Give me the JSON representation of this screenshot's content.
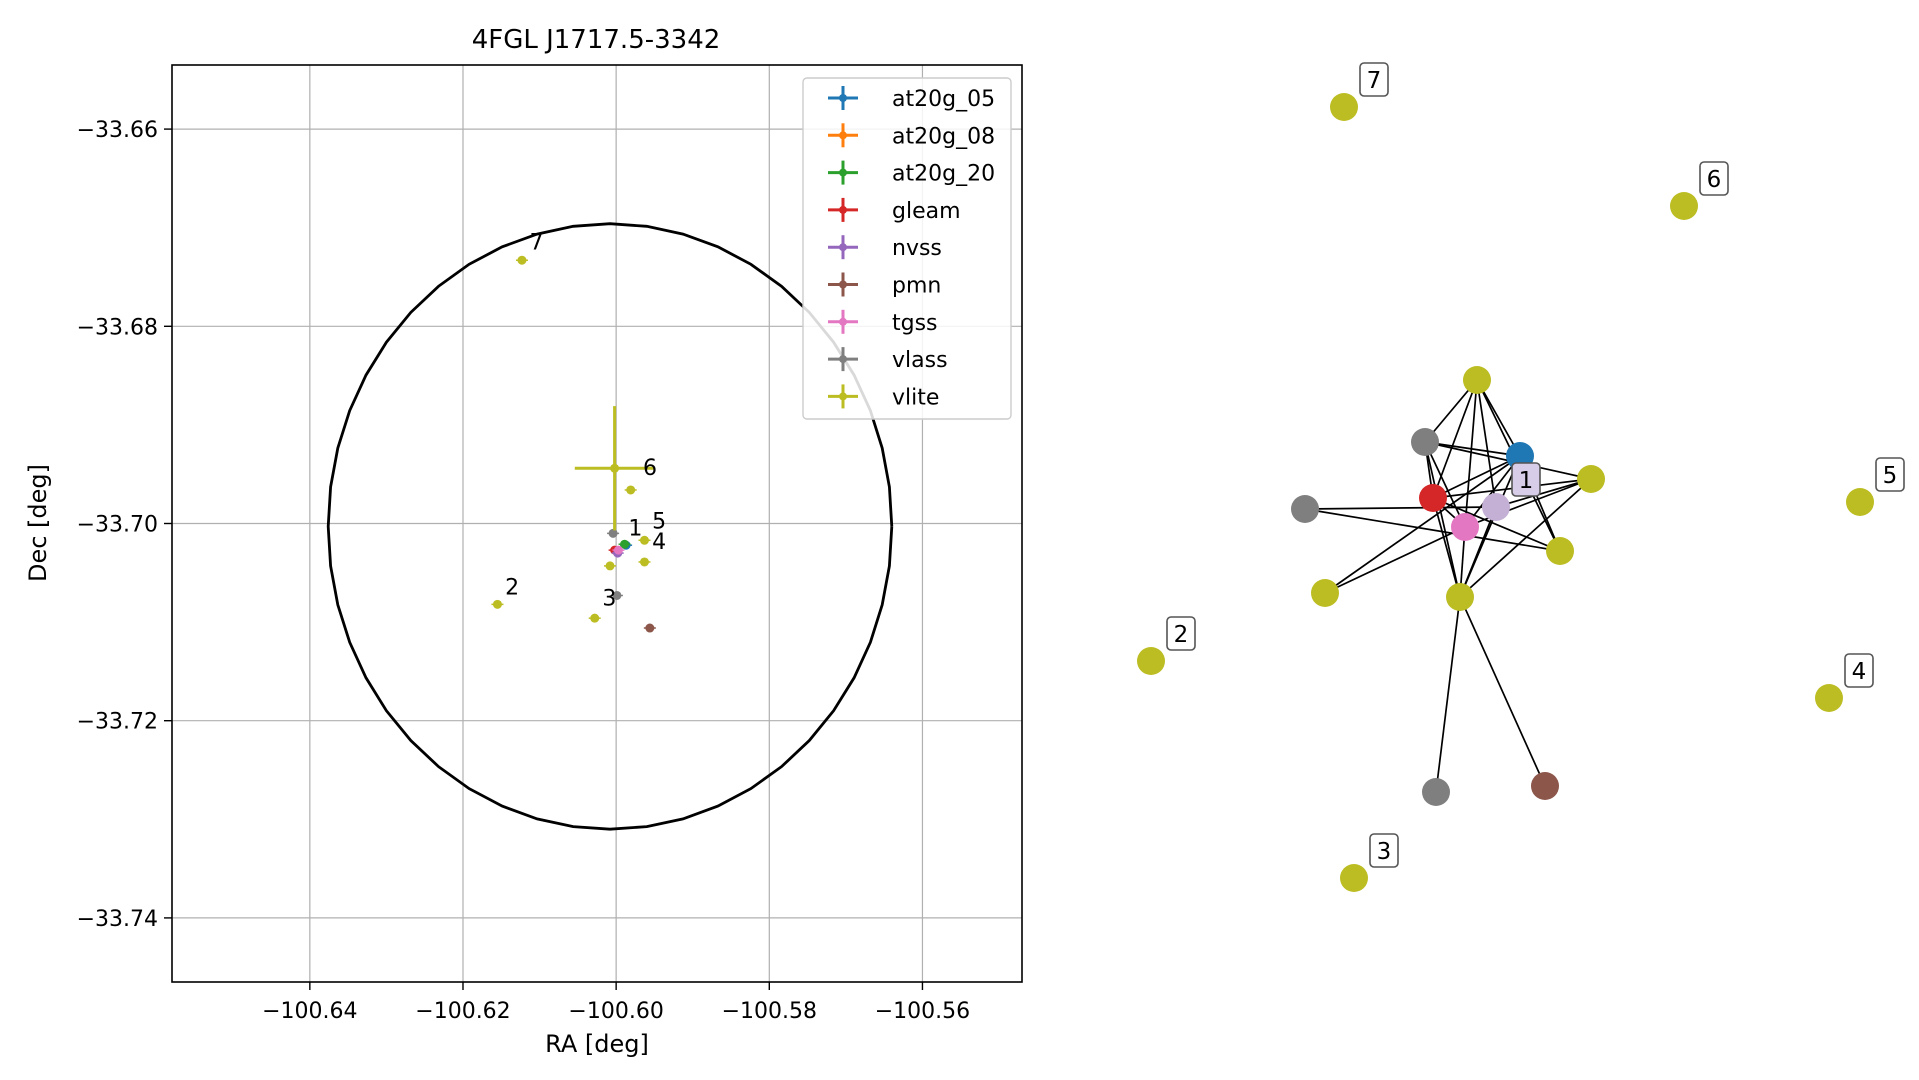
{
  "chart_data": [
    {
      "type": "scatter",
      "title": "4FGL J1717.5-3342",
      "xlabel": "RA [deg]",
      "ylabel": "Dec [deg]",
      "xlim": [
        -100.658,
        -100.547
      ],
      "ylim": [
        -33.7465,
        -33.6535
      ],
      "xticks": [
        -100.64,
        -100.62,
        -100.6,
        -100.58,
        -100.56
      ],
      "yticks": [
        -33.66,
        -33.68,
        -33.7,
        -33.72,
        -33.74
      ],
      "xtick_labels": [
        "−100.64",
        "−100.62",
        "−100.60",
        "−100.58",
        "−100.56"
      ],
      "ytick_labels": [
        "−33.66",
        "−33.68",
        "−33.70",
        "−33.72",
        "−33.74"
      ],
      "grid": true,
      "legend_position": "top-right",
      "ellipse": {
        "center_ra": -100.6008,
        "center_dec": -33.7003,
        "semi_axis_ra": 0.0368,
        "semi_axis_dec": 0.0307,
        "color": "#000000"
      },
      "series": [
        {
          "name": "at20g_05",
          "color": "#1f77b4",
          "points": [
            {
              "ra": -100.5987,
              "dec": -33.7022
            }
          ]
        },
        {
          "name": "at20g_08",
          "color": "#ff7f0e",
          "points": []
        },
        {
          "name": "at20g_20",
          "color": "#2ca02c",
          "points": [
            {
              "ra": -100.5989,
              "dec": -33.7021
            }
          ]
        },
        {
          "name": "gleam",
          "color": "#d62728",
          "points": [
            {
              "ra": -100.6002,
              "dec": -33.7027
            }
          ]
        },
        {
          "name": "nvss",
          "color": "#9467bd",
          "points": [
            {
              "ra": -100.5998,
              "dec": -33.703
            }
          ]
        },
        {
          "name": "pmn",
          "color": "#8c564b",
          "points": [
            {
              "ra": -100.5956,
              "dec": -33.7106
            }
          ]
        },
        {
          "name": "tgss",
          "color": "#e377c2",
          "points": [
            {
              "ra": -100.5997,
              "dec": -33.7027
            }
          ]
        },
        {
          "name": "vlass",
          "color": "#7f7f7f",
          "points": [
            {
              "ra": -100.6004,
              "dec": -33.701
            },
            {
              "ra": -100.5999,
              "dec": -33.7073
            }
          ]
        },
        {
          "name": "vlite",
          "color": "#bcbd22",
          "points": [
            {
              "ra": -100.6002,
              "dec": -33.6944,
              "xerr": 0.0052,
              "yerr": 0.0063
            },
            {
              "ra": -100.6123,
              "dec": -33.6733
            },
            {
              "ra": -100.5981,
              "dec": -33.6966
            },
            {
              "ra": -100.5963,
              "dec": -33.7017
            },
            {
              "ra": -100.5963,
              "dec": -33.7039
            },
            {
              "ra": -100.6008,
              "dec": -33.7043
            },
            {
              "ra": -100.6155,
              "dec": -33.7082
            },
            {
              "ra": -100.6028,
              "dec": -33.7096
            }
          ]
        }
      ],
      "annotations": [
        {
          "text": "1",
          "ra": -100.5984,
          "dec": -33.7012
        },
        {
          "text": "2",
          "ra": -100.6145,
          "dec": -33.7072
        },
        {
          "text": "3",
          "ra": -100.6018,
          "dec": -33.7083
        },
        {
          "text": "4",
          "ra": -100.5953,
          "dec": -33.7026
        },
        {
          "text": "5",
          "ra": -100.5953,
          "dec": -33.7005
        },
        {
          "text": "6",
          "ra": -100.5965,
          "dec": -33.6951
        },
        {
          "text": "7",
          "ra": -100.6113,
          "dec": -33.6722
        }
      ]
    },
    {
      "type": "network",
      "nodes": [
        {
          "id": "vlite-top",
          "color": "#bcbd22",
          "label": ""
        },
        {
          "id": "vlass-a",
          "color": "#7f7f7f",
          "label": ""
        },
        {
          "id": "at20g",
          "color": "#1f77b4",
          "label": ""
        },
        {
          "id": "vlite-right",
          "color": "#bcbd22",
          "label": ""
        },
        {
          "id": "vlass-left",
          "color": "#7f7f7f",
          "label": ""
        },
        {
          "id": "gleam",
          "color": "#d62728",
          "label": ""
        },
        {
          "id": "nvss",
          "color": "#c5b0d5",
          "label": "1"
        },
        {
          "id": "tgss",
          "color": "#e377c2",
          "label": ""
        },
        {
          "id": "vlite-mid-right",
          "color": "#bcbd22",
          "label": ""
        },
        {
          "id": "vlite-left",
          "color": "#bcbd22",
          "label": ""
        },
        {
          "id": "vlite-center",
          "color": "#bcbd22",
          "label": ""
        },
        {
          "id": "vlass-bottom",
          "color": "#7f7f7f",
          "label": ""
        },
        {
          "id": "pmn",
          "color": "#8c564b",
          "label": ""
        },
        {
          "id": "iso-7",
          "color": "#bcbd22",
          "label": "7"
        },
        {
          "id": "iso-6",
          "color": "#bcbd22",
          "label": "6"
        },
        {
          "id": "iso-5",
          "color": "#bcbd22",
          "label": "5"
        },
        {
          "id": "iso-4",
          "color": "#bcbd22",
          "label": "4"
        },
        {
          "id": "iso-2",
          "color": "#bcbd22",
          "label": "2"
        },
        {
          "id": "iso-3",
          "color": "#bcbd22",
          "label": "3"
        }
      ],
      "edges": [
        [
          "vlite-top",
          "vlass-a"
        ],
        [
          "vlite-top",
          "at20g"
        ],
        [
          "vlite-top",
          "gleam"
        ],
        [
          "vlite-top",
          "tgss"
        ],
        [
          "vlite-top",
          "nvss"
        ],
        [
          "vlite-top",
          "vlite-mid-right"
        ],
        [
          "vlass-a",
          "at20g"
        ],
        [
          "vlass-a",
          "vlite-right"
        ],
        [
          "vlass-a",
          "gleam"
        ],
        [
          "vlass-a",
          "tgss"
        ],
        [
          "vlass-a",
          "vlite-center"
        ],
        [
          "at20g",
          "gleam"
        ],
        [
          "at20g",
          "tgss"
        ],
        [
          "at20g",
          "vlite-mid-right"
        ],
        [
          "at20g",
          "vlite-center"
        ],
        [
          "at20g",
          "vlite-left"
        ],
        [
          "vlite-right",
          "gleam"
        ],
        [
          "vlite-right",
          "tgss"
        ],
        [
          "vlite-right",
          "nvss"
        ],
        [
          "vlite-right",
          "vlite-center"
        ],
        [
          "vlass-left",
          "nvss"
        ],
        [
          "vlass-left",
          "vlite-mid-right"
        ],
        [
          "gleam",
          "vlite-center"
        ],
        [
          "gleam",
          "vlite-mid-right"
        ],
        [
          "gleam",
          "tgss"
        ],
        [
          "tgss",
          "vlite-center"
        ],
        [
          "tgss",
          "vlite-left"
        ],
        [
          "nvss",
          "vlite-center"
        ],
        [
          "vlite-center",
          "vlass-bottom"
        ],
        [
          "vlite-center",
          "pmn"
        ]
      ]
    }
  ]
}
